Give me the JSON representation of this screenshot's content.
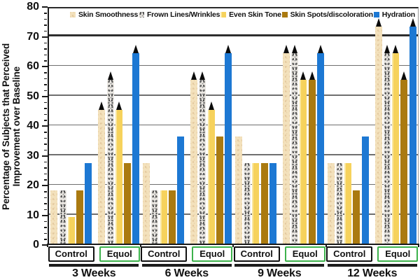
{
  "colors": {
    "skin_smoothness": "#f3e1bc",
    "frown_lines_base": "#eae7e2",
    "frown_lines_speckle": "#585858",
    "even_skin_tone": "#f6d25c",
    "skin_spots": "#aa7a10",
    "hydration": "#1d78d3",
    "equol_box_border": "#3db24c",
    "control_box_border": "#111111",
    "gridline": "#6f6f6f",
    "gridline_70": "#2e2e2e",
    "arrow": "#0b0b0b"
  },
  "ylabel": {
    "line1": "Percentage of Subjects that Perceived",
    "line2": "Improvement over Baseline"
  },
  "chart_data": {
    "type": "bar",
    "title": "",
    "xlabel": "",
    "ylabel": "Percentage of Subjects that Perceived Improvement over Baseline",
    "ylim": [
      0,
      80
    ],
    "yticks": [
      0,
      10,
      20,
      30,
      40,
      50,
      60,
      70,
      80
    ],
    "minor_tick_step": 2,
    "grid": "horizontal",
    "legend_position": "top-inside",
    "series": [
      {
        "name": "Skin Smoothness",
        "swatch": "tan-speckle"
      },
      {
        "name": "Frown Lines/Wrinkles",
        "swatch": "gray-speckle"
      },
      {
        "name": "Even Skin Tone",
        "swatch": "yellow"
      },
      {
        "name": "Skin Spots/discoloration",
        "swatch": "dark-gold"
      },
      {
        "name": "Hydration",
        "swatch": "blue"
      }
    ],
    "arrow_meaning": "significance-arrow above bar",
    "weeks": [
      {
        "label": "3 Weeks",
        "subgroups": [
          {
            "label": "Control",
            "values": [
              18,
              18,
              9,
              18,
              27
            ],
            "arrows": [
              false,
              false,
              false,
              false,
              false
            ]
          },
          {
            "label": "Equol",
            "values": [
              45,
              55,
              45,
              27,
              64
            ],
            "arrows": [
              true,
              true,
              true,
              false,
              true
            ]
          }
        ]
      },
      {
        "label": "6 Weeks",
        "subgroups": [
          {
            "label": "Control",
            "values": [
              27,
              18,
              18,
              18,
              36
            ],
            "arrows": [
              false,
              false,
              false,
              false,
              false
            ]
          },
          {
            "label": "Equol",
            "values": [
              55,
              55,
              45,
              36,
              64
            ],
            "arrows": [
              true,
              true,
              true,
              false,
              true
            ]
          }
        ]
      },
      {
        "label": "9 Weeks",
        "subgroups": [
          {
            "label": "Control",
            "values": [
              36,
              27,
              27,
              27,
              27
            ],
            "arrows": [
              false,
              false,
              false,
              false,
              false
            ]
          },
          {
            "label": "Equol",
            "values": [
              64,
              64,
              55,
              55,
              64
            ],
            "arrows": [
              true,
              true,
              true,
              true,
              true
            ]
          }
        ]
      },
      {
        "label": "12 Weeks",
        "subgroups": [
          {
            "label": "Control",
            "values": [
              27,
              27,
              27,
              18,
              36
            ],
            "arrows": [
              false,
              false,
              false,
              false,
              false
            ]
          },
          {
            "label": "Equol",
            "values": [
              73,
              64,
              64,
              55,
              73
            ],
            "arrows": [
              true,
              true,
              true,
              true,
              true
            ]
          }
        ]
      }
    ]
  }
}
